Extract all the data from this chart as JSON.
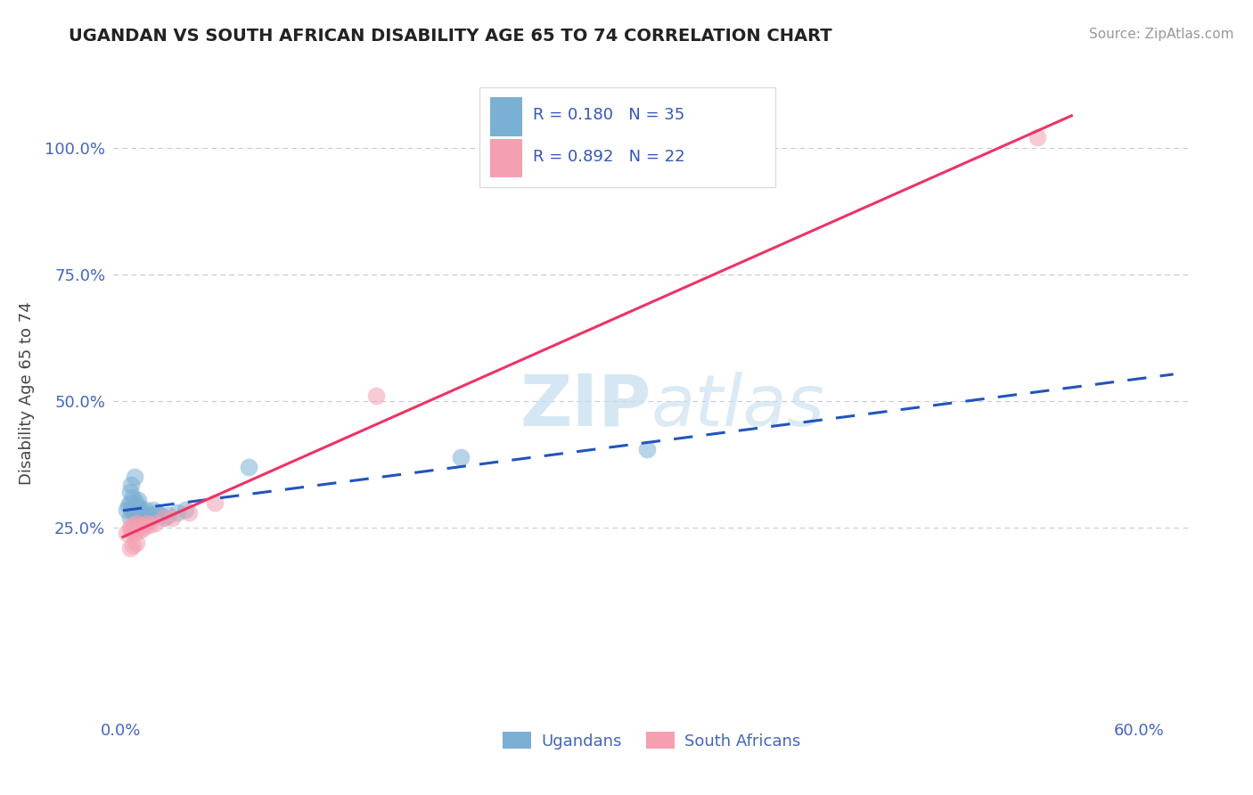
{
  "title": "UGANDAN VS SOUTH AFRICAN DISABILITY AGE 65 TO 74 CORRELATION CHART",
  "source": "Source: ZipAtlas.com",
  "ylabel": "Disability Age 65 to 74",
  "xlim": [
    -0.005,
    0.63
  ],
  "ylim": [
    -0.12,
    1.15
  ],
  "ytick_vals": [
    0.25,
    0.5,
    0.75,
    1.0
  ],
  "ytick_labels": [
    "25.0%",
    "50.0%",
    "75.0%",
    "100.0%"
  ],
  "xtick_vals": [
    0.0,
    0.6
  ],
  "xtick_labels": [
    "0.0%",
    "60.0%"
  ],
  "watermark": "ZIPatlas",
  "legend_R1": "R = 0.180",
  "legend_N1": "N = 35",
  "legend_R2": "R = 0.892",
  "legend_N2": "N = 22",
  "ugandan_color": "#7BAFD4",
  "sa_color": "#F4A0B0",
  "ugandan_line_color": "#2255BB",
  "sa_line_color": "#EE3366",
  "grid_color": "#C8C8D8",
  "background_color": "#FFFFFF",
  "ugandan_x": [
    0.003,
    0.004,
    0.005,
    0.005,
    0.006,
    0.007,
    0.007,
    0.008,
    0.008,
    0.009,
    0.009,
    0.01,
    0.01,
    0.01,
    0.011,
    0.011,
    0.012,
    0.013,
    0.014,
    0.015,
    0.016,
    0.017,
    0.019,
    0.021,
    0.023,
    0.025,
    0.028,
    0.033,
    0.038,
    0.005,
    0.006,
    0.008,
    0.075,
    0.2,
    0.31
  ],
  "ugandan_y": [
    0.285,
    0.295,
    0.27,
    0.3,
    0.285,
    0.29,
    0.31,
    0.275,
    0.295,
    0.28,
    0.3,
    0.265,
    0.285,
    0.305,
    0.27,
    0.29,
    0.28,
    0.275,
    0.285,
    0.27,
    0.265,
    0.275,
    0.285,
    0.28,
    0.275,
    0.27,
    0.275,
    0.28,
    0.285,
    0.32,
    0.335,
    0.35,
    0.37,
    0.39,
    0.405
  ],
  "sa_x": [
    0.003,
    0.005,
    0.006,
    0.007,
    0.008,
    0.009,
    0.01,
    0.011,
    0.012,
    0.013,
    0.015,
    0.017,
    0.02,
    0.025,
    0.03,
    0.04,
    0.055,
    0.005,
    0.007,
    0.009,
    0.15,
    0.54
  ],
  "sa_y": [
    0.24,
    0.25,
    0.245,
    0.255,
    0.24,
    0.26,
    0.25,
    0.245,
    0.255,
    0.25,
    0.26,
    0.255,
    0.26,
    0.27,
    0.27,
    0.28,
    0.3,
    0.21,
    0.215,
    0.22,
    0.51,
    1.02
  ]
}
